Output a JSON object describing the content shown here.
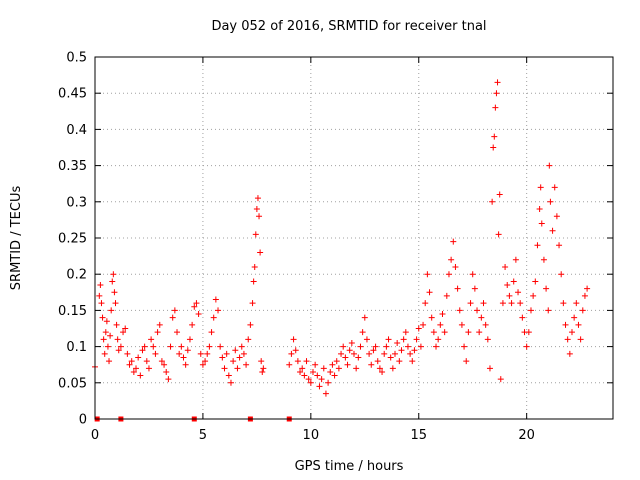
{
  "chart_data": {
    "type": "scatter",
    "title": "Day 052 of 2016, SRMTID for receiver tnal",
    "xlabel": "GPS time / hours",
    "ylabel": "SRMTID / TECUs",
    "xlim": [
      0,
      24
    ],
    "ylim": [
      0,
      0.5
    ],
    "xticks": [
      0,
      5,
      10,
      15,
      20
    ],
    "xtick_labels": [
      "0",
      "5",
      "10",
      "15",
      "20"
    ],
    "yticks": [
      0,
      0.05,
      0.1,
      0.15,
      0.2,
      0.25,
      0.3,
      0.35,
      0.4,
      0.45,
      0.5
    ],
    "ytick_labels": [
      "0",
      "0.05",
      "0.1",
      "0.15",
      "0.2",
      "0.25",
      "0.3",
      "0.35",
      "0.4",
      "0.45",
      "0.5"
    ],
    "grid": true,
    "marker": "+",
    "color": "#ff0000",
    "series": [
      {
        "name": "SRMTID",
        "points": [
          [
            0.0,
            0.072
          ],
          [
            0.2,
            0.17
          ],
          [
            0.25,
            0.185
          ],
          [
            0.3,
            0.16
          ],
          [
            0.35,
            0.14
          ],
          [
            0.4,
            0.11
          ],
          [
            0.45,
            0.09
          ],
          [
            0.5,
            0.12
          ],
          [
            0.55,
            0.135
          ],
          [
            0.6,
            0.1
          ],
          [
            0.65,
            0.08
          ],
          [
            0.7,
            0.115
          ],
          [
            0.75,
            0.15
          ],
          [
            0.8,
            0.19
          ],
          [
            0.85,
            0.2
          ],
          [
            0.9,
            0.175
          ],
          [
            0.95,
            0.16
          ],
          [
            1.0,
            0.13
          ],
          [
            1.05,
            0.11
          ],
          [
            1.1,
            0.095
          ],
          [
            1.2,
            0.1
          ],
          [
            1.3,
            0.12
          ],
          [
            1.4,
            0.125
          ],
          [
            1.5,
            0.09
          ],
          [
            1.6,
            0.075
          ],
          [
            1.7,
            0.08
          ],
          [
            1.8,
            0.065
          ],
          [
            1.9,
            0.07
          ],
          [
            2.0,
            0.085
          ],
          [
            2.1,
            0.06
          ],
          [
            2.2,
            0.095
          ],
          [
            2.3,
            0.1
          ],
          [
            2.4,
            0.08
          ],
          [
            2.5,
            0.07
          ],
          [
            2.6,
            0.11
          ],
          [
            2.7,
            0.1
          ],
          [
            2.8,
            0.09
          ],
          [
            2.9,
            0.12
          ],
          [
            3.0,
            0.13
          ],
          [
            3.1,
            0.08
          ],
          [
            3.2,
            0.075
          ],
          [
            3.3,
            0.065
          ],
          [
            3.4,
            0.055
          ],
          [
            3.5,
            0.1
          ],
          [
            3.6,
            0.14
          ],
          [
            3.7,
            0.15
          ],
          [
            3.8,
            0.12
          ],
          [
            3.9,
            0.09
          ],
          [
            4.0,
            0.1
          ],
          [
            4.1,
            0.085
          ],
          [
            4.2,
            0.075
          ],
          [
            4.3,
            0.095
          ],
          [
            4.4,
            0.11
          ],
          [
            4.5,
            0.13
          ],
          [
            4.6,
            0.155
          ],
          [
            4.7,
            0.16
          ],
          [
            4.8,
            0.145
          ],
          [
            4.9,
            0.09
          ],
          [
            5.0,
            0.075
          ],
          [
            5.1,
            0.08
          ],
          [
            5.2,
            0.09
          ],
          [
            5.3,
            0.1
          ],
          [
            5.4,
            0.12
          ],
          [
            5.5,
            0.14
          ],
          [
            5.6,
            0.165
          ],
          [
            5.7,
            0.15
          ],
          [
            5.8,
            0.1
          ],
          [
            5.9,
            0.085
          ],
          [
            6.0,
            0.07
          ],
          [
            6.1,
            0.09
          ],
          [
            6.2,
            0.06
          ],
          [
            6.3,
            0.05
          ],
          [
            6.4,
            0.08
          ],
          [
            6.5,
            0.095
          ],
          [
            6.6,
            0.07
          ],
          [
            6.7,
            0.085
          ],
          [
            6.8,
            0.1
          ],
          [
            6.9,
            0.09
          ],
          [
            7.0,
            0.075
          ],
          [
            7.1,
            0.11
          ],
          [
            7.2,
            0.13
          ],
          [
            7.3,
            0.16
          ],
          [
            7.35,
            0.19
          ],
          [
            7.4,
            0.21
          ],
          [
            7.45,
            0.255
          ],
          [
            7.5,
            0.29
          ],
          [
            7.55,
            0.305
          ],
          [
            7.6,
            0.28
          ],
          [
            7.65,
            0.23
          ],
          [
            7.7,
            0.08
          ],
          [
            7.75,
            0.065
          ],
          [
            7.8,
            0.07
          ],
          [
            9.0,
            0.075
          ],
          [
            9.1,
            0.09
          ],
          [
            9.2,
            0.11
          ],
          [
            9.3,
            0.095
          ],
          [
            9.4,
            0.08
          ],
          [
            9.5,
            0.065
          ],
          [
            9.6,
            0.07
          ],
          [
            9.7,
            0.06
          ],
          [
            9.8,
            0.08
          ],
          [
            9.9,
            0.055
          ],
          [
            10.0,
            0.05
          ],
          [
            10.1,
            0.065
          ],
          [
            10.2,
            0.075
          ],
          [
            10.3,
            0.06
          ],
          [
            10.4,
            0.045
          ],
          [
            10.5,
            0.055
          ],
          [
            10.6,
            0.07
          ],
          [
            10.7,
            0.035
          ],
          [
            10.8,
            0.05
          ],
          [
            10.9,
            0.065
          ],
          [
            11.0,
            0.075
          ],
          [
            11.1,
            0.06
          ],
          [
            11.2,
            0.08
          ],
          [
            11.3,
            0.07
          ],
          [
            11.4,
            0.09
          ],
          [
            11.5,
            0.1
          ],
          [
            11.6,
            0.085
          ],
          [
            11.7,
            0.075
          ],
          [
            11.8,
            0.095
          ],
          [
            11.9,
            0.105
          ],
          [
            12.0,
            0.09
          ],
          [
            12.1,
            0.07
          ],
          [
            12.2,
            0.085
          ],
          [
            12.3,
            0.1
          ],
          [
            12.4,
            0.12
          ],
          [
            12.5,
            0.14
          ],
          [
            12.6,
            0.11
          ],
          [
            12.7,
            0.09
          ],
          [
            12.8,
            0.075
          ],
          [
            12.9,
            0.095
          ],
          [
            13.0,
            0.1
          ],
          [
            13.1,
            0.08
          ],
          [
            13.2,
            0.07
          ],
          [
            13.3,
            0.065
          ],
          [
            13.4,
            0.09
          ],
          [
            13.5,
            0.1
          ],
          [
            13.6,
            0.11
          ],
          [
            13.7,
            0.085
          ],
          [
            13.8,
            0.07
          ],
          [
            13.9,
            0.09
          ],
          [
            14.0,
            0.105
          ],
          [
            14.1,
            0.08
          ],
          [
            14.2,
            0.095
          ],
          [
            14.3,
            0.11
          ],
          [
            14.4,
            0.12
          ],
          [
            14.5,
            0.1
          ],
          [
            14.6,
            0.09
          ],
          [
            14.7,
            0.08
          ],
          [
            14.8,
            0.095
          ],
          [
            14.9,
            0.11
          ],
          [
            15.0,
            0.125
          ],
          [
            15.1,
            0.1
          ],
          [
            15.2,
            0.13
          ],
          [
            15.3,
            0.16
          ],
          [
            15.4,
            0.2
          ],
          [
            15.5,
            0.175
          ],
          [
            15.6,
            0.14
          ],
          [
            15.7,
            0.12
          ],
          [
            15.8,
            0.1
          ],
          [
            15.9,
            0.11
          ],
          [
            16.0,
            0.13
          ],
          [
            16.1,
            0.145
          ],
          [
            16.2,
            0.12
          ],
          [
            16.3,
            0.17
          ],
          [
            16.4,
            0.2
          ],
          [
            16.5,
            0.22
          ],
          [
            16.6,
            0.245
          ],
          [
            16.7,
            0.21
          ],
          [
            16.8,
            0.18
          ],
          [
            16.9,
            0.15
          ],
          [
            17.0,
            0.13
          ],
          [
            17.1,
            0.1
          ],
          [
            17.2,
            0.08
          ],
          [
            17.3,
            0.12
          ],
          [
            17.4,
            0.16
          ],
          [
            17.5,
            0.2
          ],
          [
            17.6,
            0.18
          ],
          [
            17.7,
            0.15
          ],
          [
            17.8,
            0.12
          ],
          [
            17.9,
            0.14
          ],
          [
            18.0,
            0.16
          ],
          [
            18.1,
            0.13
          ],
          [
            18.2,
            0.11
          ],
          [
            18.3,
            0.07
          ],
          [
            18.4,
            0.3
          ],
          [
            18.45,
            0.375
          ],
          [
            18.5,
            0.39
          ],
          [
            18.55,
            0.43
          ],
          [
            18.6,
            0.45
          ],
          [
            18.65,
            0.465
          ],
          [
            18.7,
            0.255
          ],
          [
            18.75,
            0.31
          ],
          [
            18.8,
            0.055
          ],
          [
            18.9,
            0.16
          ],
          [
            19.0,
            0.21
          ],
          [
            19.1,
            0.185
          ],
          [
            19.2,
            0.17
          ],
          [
            19.3,
            0.16
          ],
          [
            19.4,
            0.19
          ],
          [
            19.5,
            0.22
          ],
          [
            19.6,
            0.175
          ],
          [
            19.7,
            0.16
          ],
          [
            19.8,
            0.14
          ],
          [
            19.9,
            0.12
          ],
          [
            20.0,
            0.1
          ],
          [
            20.1,
            0.12
          ],
          [
            20.2,
            0.15
          ],
          [
            20.3,
            0.17
          ],
          [
            20.4,
            0.19
          ],
          [
            20.5,
            0.24
          ],
          [
            20.6,
            0.29
          ],
          [
            20.65,
            0.32
          ],
          [
            20.7,
            0.27
          ],
          [
            20.8,
            0.22
          ],
          [
            20.9,
            0.18
          ],
          [
            21.0,
            0.15
          ],
          [
            21.05,
            0.35
          ],
          [
            21.1,
            0.3
          ],
          [
            21.2,
            0.26
          ],
          [
            21.3,
            0.32
          ],
          [
            21.4,
            0.28
          ],
          [
            21.5,
            0.24
          ],
          [
            21.6,
            0.2
          ],
          [
            21.7,
            0.16
          ],
          [
            21.8,
            0.13
          ],
          [
            21.9,
            0.11
          ],
          [
            22.0,
            0.09
          ],
          [
            22.1,
            0.12
          ],
          [
            22.2,
            0.14
          ],
          [
            22.3,
            0.16
          ],
          [
            22.4,
            0.13
          ],
          [
            22.5,
            0.11
          ],
          [
            22.6,
            0.15
          ],
          [
            22.7,
            0.17
          ],
          [
            22.8,
            0.18
          ]
        ]
      }
    ],
    "zero_points": [
      0.1,
      1.2,
      4.6,
      7.2,
      9.0
    ]
  }
}
